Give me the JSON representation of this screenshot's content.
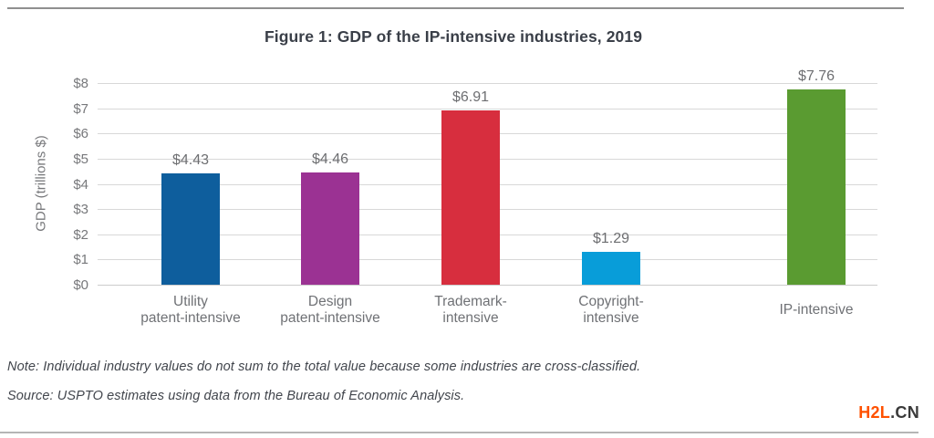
{
  "page": {
    "title": "Figure 1: GDP of the IP-intensive industries, 2019",
    "note": "Note: Individual industry values do not sum to the total value because some industries are cross-classified.",
    "source": "Source: USPTO estimates using data from the Bureau of Economic Analysis.",
    "watermark": {
      "primary": "H2L",
      "secondary": ".CN",
      "primary_color": "#ff5100",
      "secondary_color": "#3a3a3a"
    }
  },
  "chart_data": {
    "type": "bar",
    "title": "Figure 1: GDP of the IP-intensive industries, 2019",
    "categories": [
      "Utility\npatent-intensive",
      "Design\npatent-intensive",
      "Trademark-\nintensive",
      "Copyright-\nintensive",
      "IP-intensive"
    ],
    "values": [
      4.43,
      4.46,
      6.91,
      1.29,
      7.76
    ],
    "value_labels": [
      "$4.43",
      "$4.46",
      "$6.91",
      "$1.29",
      "$7.76"
    ],
    "bar_colors": [
      "#0e5e9d",
      "#9b3293",
      "#d72e3e",
      "#089dd9",
      "#5a9b31"
    ],
    "xlabel": "",
    "ylabel": "GDP (trillions $)",
    "ylim": [
      0,
      8
    ],
    "ytick_step": 1,
    "ytick_labels": [
      "$0",
      "$1",
      "$2",
      "$3",
      "$4",
      "$5",
      "$6",
      "$7",
      "$8"
    ],
    "grid": true,
    "legend": "none"
  }
}
